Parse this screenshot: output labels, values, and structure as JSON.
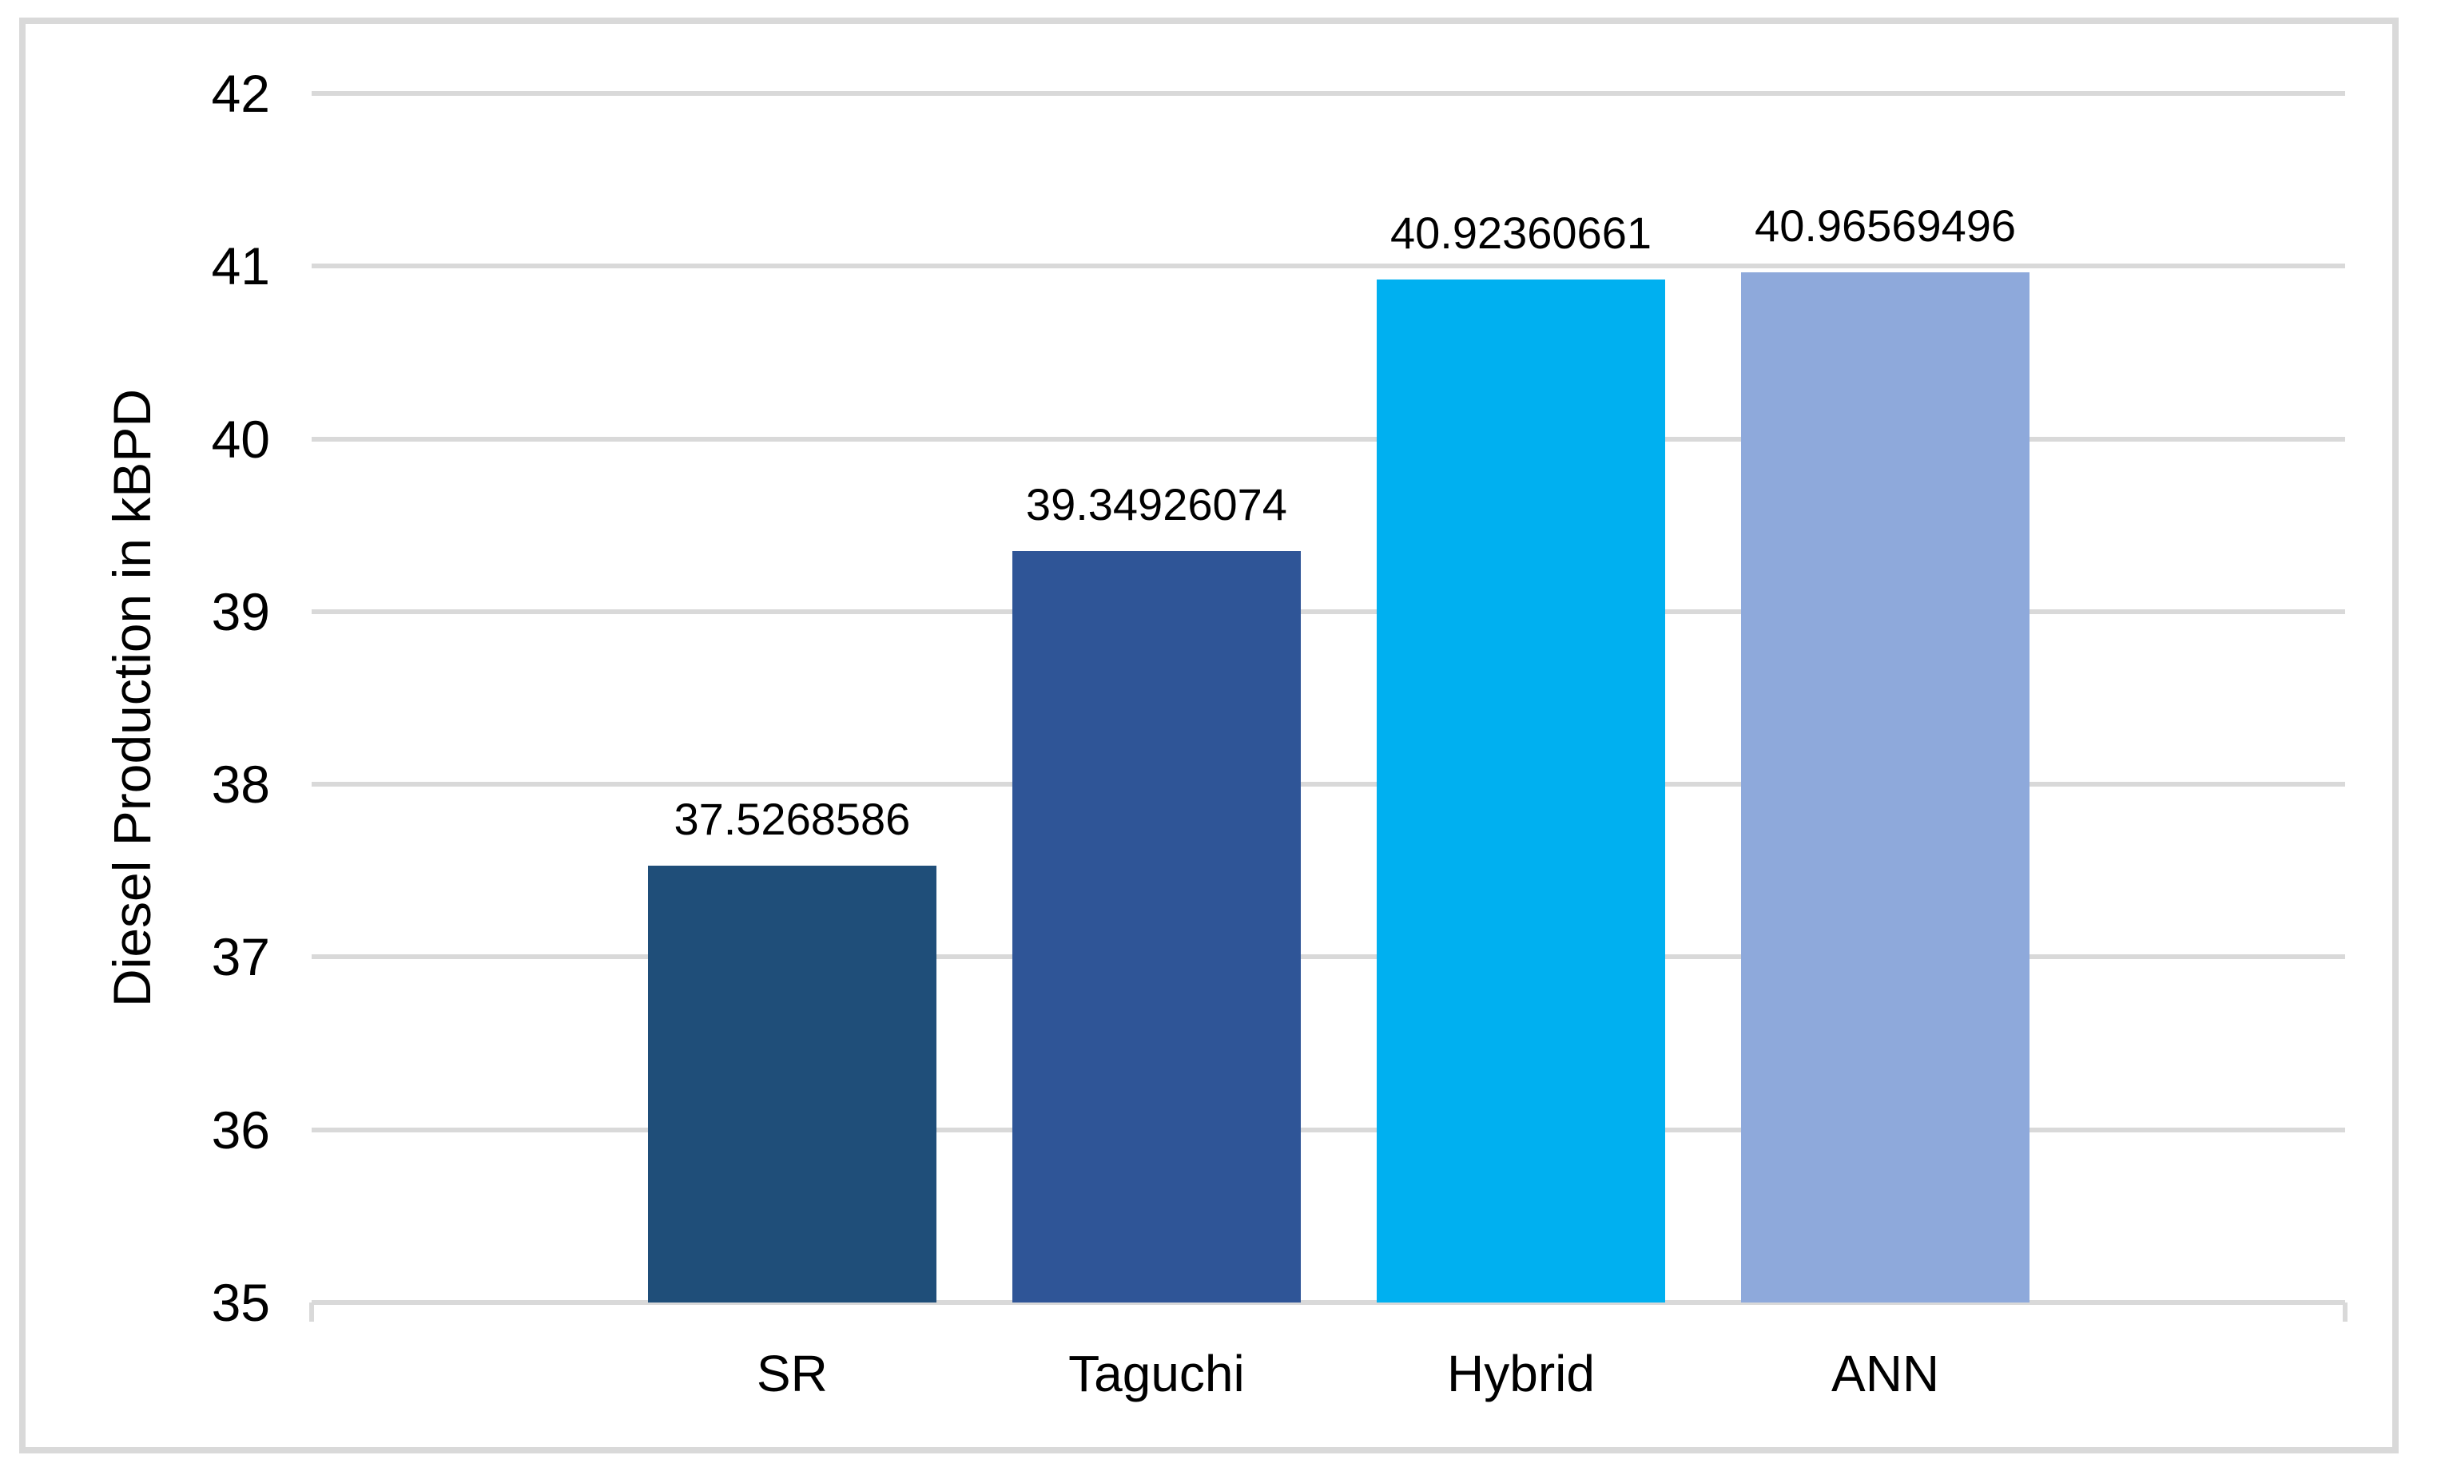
{
  "chart_data": {
    "type": "bar",
    "title": "",
    "xlabel": "",
    "ylabel": "Diesel Production in kBPD",
    "categories": [
      "SR",
      "Taguchi",
      "Hybrid",
      "ANN"
    ],
    "values": [
      37.5268586,
      39.34926074,
      40.92360661,
      40.96569496
    ],
    "data_labels": [
      "37.5268586",
      "39.34926074",
      "40.92360661",
      "40.96569496"
    ],
    "ylim": [
      35,
      42
    ],
    "ytick_interval": 1,
    "yticks": [
      "42",
      "41",
      "40",
      "39",
      "38",
      "37",
      "36",
      "35"
    ],
    "grid": "horizontal",
    "legend": "none",
    "bar_colors": [
      "#1F4E79",
      "#2F5597",
      "#00B0F0",
      "#8EA9DB"
    ],
    "gridline_color": "#D9D9D9",
    "axis_line_color": "#D9D9D9",
    "frame_border_color": "#D9D9D9",
    "text_color": "#000000",
    "background_color": "#FFFFFF"
  }
}
